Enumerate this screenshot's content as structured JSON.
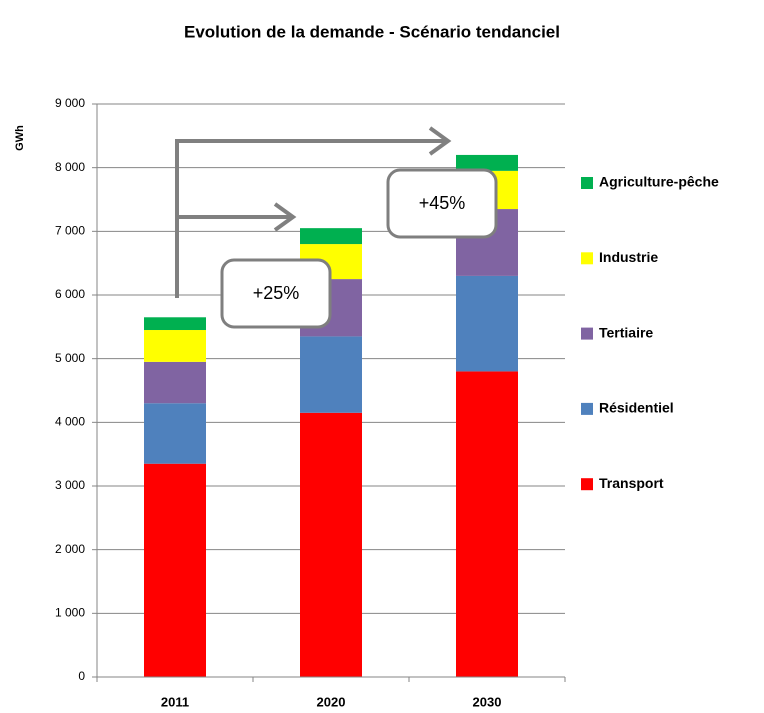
{
  "chart_data": {
    "type": "stacked_bar",
    "title": "Evolution de la demande - Scénario tendanciel",
    "y_label": "GWh",
    "categories": [
      "2011",
      "2020",
      "2030"
    ],
    "series": [
      {
        "name": "Transport",
        "color": "#ff0000",
        "values": [
          3350,
          4150,
          4800
        ]
      },
      {
        "name": "Résidentiel",
        "color": "#4f81bd",
        "values": [
          950,
          1200,
          1500
        ]
      },
      {
        "name": "Tertiaire",
        "color": "#8064a2",
        "values": [
          650,
          900,
          1050
        ]
      },
      {
        "name": "Industrie",
        "color": "#ffff00",
        "values": [
          500,
          550,
          600
        ]
      },
      {
        "name": "Agriculture-pêche",
        "color": "#00b050",
        "values": [
          200,
          250,
          250
        ]
      }
    ],
    "annotations": [
      "+25%",
      "+45%"
    ],
    "ylim": [
      0,
      9000
    ],
    "yticks": [
      0,
      {
        "value": 1000,
        "label": "1 000"
      },
      {
        "value": 2000,
        "label": "2 000"
      },
      {
        "value": 3000,
        "label": "3 000"
      },
      {
        "value": 4000,
        "label": "4 000"
      },
      {
        "value": 5000,
        "label": "5 000"
      },
      {
        "value": 6000,
        "label": "6 000"
      },
      {
        "value": 7000,
        "label": "7 000"
      },
      {
        "value": 8000,
        "label": "8 000"
      },
      {
        "value": 9000,
        "label": "9 000"
      }
    ],
    "grid": true,
    "legend": "right"
  }
}
